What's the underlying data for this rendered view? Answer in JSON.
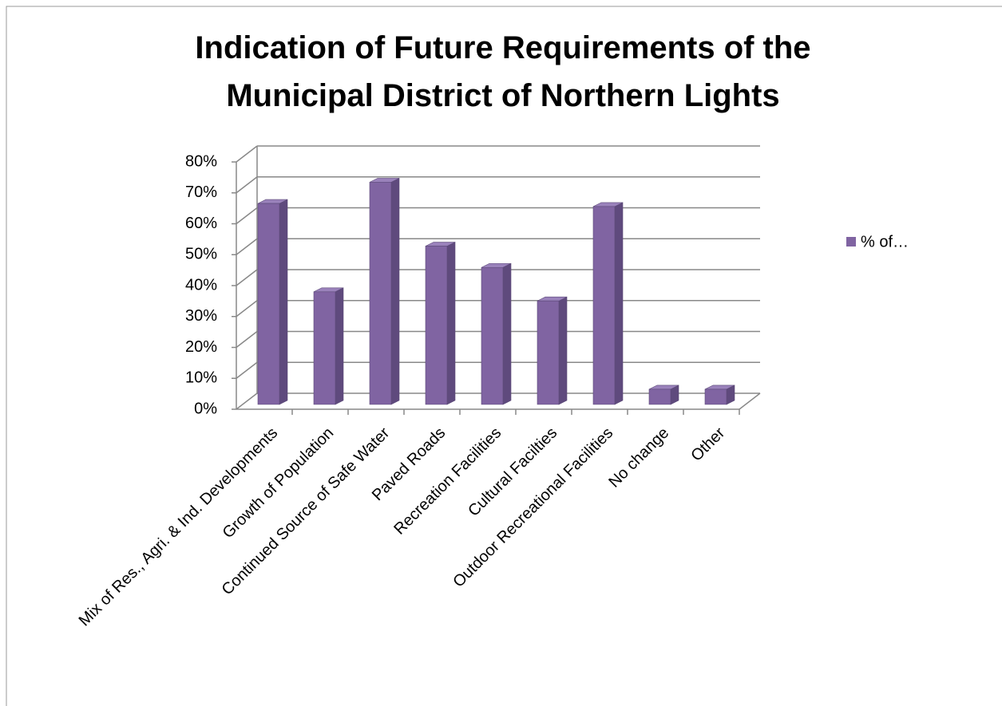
{
  "chart_data": {
    "type": "bar3d",
    "title": "Indication of Future Requirements of the Municipal District of Northern Lights",
    "categories": [
      "Mix of Res., Agri. & Ind. Developments",
      "Growth of Population",
      "Continued Source of Safe Water",
      "Paved Roads",
      "Recreation Facilities",
      "Cultural Facilties",
      "Outdoor Recreational Facilities",
      "No change",
      "Other"
    ],
    "series": [
      {
        "name": "% of…",
        "color": "#8064a2",
        "values": [
          66,
          37,
          73,
          52,
          45,
          34,
          65,
          5,
          5
        ]
      }
    ],
    "ylim": [
      0,
      80
    ],
    "yticks": [
      {
        "value": 0,
        "label": "0%"
      },
      {
        "value": 10,
        "label": "10%"
      },
      {
        "value": 20,
        "label": "20%"
      },
      {
        "value": 30,
        "label": "30%"
      },
      {
        "value": 40,
        "label": "40%"
      },
      {
        "value": 50,
        "label": "50%"
      },
      {
        "value": 60,
        "label": "60%"
      },
      {
        "value": 70,
        "label": "70%"
      },
      {
        "value": 80,
        "label": "80%"
      }
    ],
    "grid": true,
    "legend": "right"
  }
}
